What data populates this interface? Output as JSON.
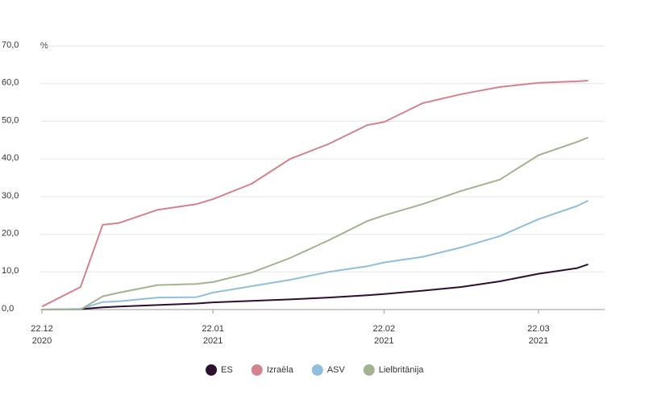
{
  "chart_data": {
    "type": "line",
    "ylabel": "%",
    "x": [
      "2020-12-22",
      "2020-12-29",
      "2021-01-02",
      "2021-01-05",
      "2021-01-12",
      "2021-01-19",
      "2021-01-22",
      "2021-01-29",
      "2021-02-05",
      "2021-02-12",
      "2021-02-19",
      "2021-02-22",
      "2021-03-01",
      "2021-03-08",
      "2021-03-15",
      "2021-03-22",
      "2021-03-29",
      "2021-03-31"
    ],
    "series": [
      {
        "name": "ES",
        "color": "#2d0f2e",
        "values": [
          0,
          0.1,
          0.6,
          0.8,
          1.2,
          1.6,
          1.9,
          2.3,
          2.7,
          3.2,
          3.8,
          4.1,
          5.0,
          6.0,
          7.5,
          9.5,
          11,
          12
        ]
      },
      {
        "name": "Izraēla",
        "color": "#d4828e",
        "values": [
          0.8,
          6,
          22.5,
          23,
          26.5,
          28,
          29.3,
          33.4,
          40,
          44,
          49,
          49.8,
          54.8,
          57.2,
          59.1,
          60.2,
          60.6,
          60.8
        ]
      },
      {
        "name": "ASV",
        "color": "#8fbfdc",
        "values": [
          0,
          0.2,
          2.0,
          2.2,
          3.2,
          3.3,
          4.5,
          6.2,
          7.9,
          10,
          11.5,
          12.5,
          14,
          16.5,
          19.5,
          24,
          27.5,
          28.9
        ]
      },
      {
        "name": "Lielbritānija",
        "color": "#a3b28f",
        "values": [
          0,
          0,
          3.5,
          4.5,
          6.5,
          6.8,
          7.3,
          9.8,
          13.7,
          18.4,
          23.5,
          25,
          28,
          31.5,
          34.5,
          41,
          44.5,
          45.7
        ]
      }
    ],
    "xlim": [
      "2020-12-22",
      "2021-04-03"
    ],
    "xticks": [
      {
        "value": "2020-12-22",
        "label": "22.12\n2020"
      },
      {
        "value": "2021-01-22",
        "label": "22.01\n2021"
      },
      {
        "value": "2021-02-22",
        "label": "22.02\n2021"
      },
      {
        "value": "2021-03-22",
        "label": "22.03\n2021"
      }
    ],
    "ylim": [
      0,
      70
    ],
    "yticks": [
      {
        "value": 0,
        "label": "0,0"
      },
      {
        "value": 10,
        "label": "10,0"
      },
      {
        "value": 20,
        "label": "20,0"
      },
      {
        "value": 30,
        "label": "30,0"
      },
      {
        "value": 40,
        "label": "40,0"
      },
      {
        "value": 50,
        "label": "50,0"
      },
      {
        "value": 60,
        "label": "60,0"
      },
      {
        "value": 70,
        "label": "70,0"
      }
    ],
    "grid": true,
    "legend": "bottom"
  }
}
